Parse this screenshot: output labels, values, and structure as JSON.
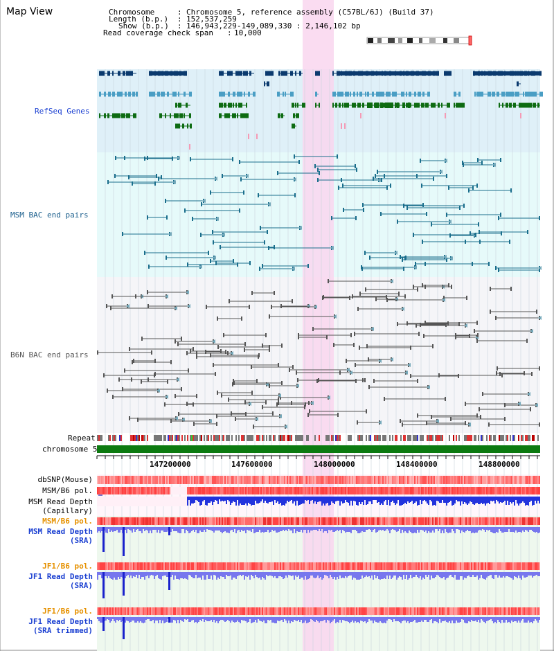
{
  "view": {
    "title": "Map View"
  },
  "header": {
    "chromosome_label": "Chromosome",
    "chromosome_value": "Chromosome 5, reference assembly (C57BL/6J) (Build 37)",
    "length_label": "Length (b.p.)",
    "length_value": "152,537,259",
    "show_label": "Show (b.p.)",
    "show_value": "146,943,229-149,089,330 : 2,146,102 bp",
    "coverage_label": "Read coverage check span",
    "coverage_value": "10,000",
    "sep": ":"
  },
  "tracks": {
    "refseq": "RefSeq Genes",
    "msm_bac": "MSM BAC end pairs",
    "b6n_bac": "B6N BAC end pairs",
    "repeat": "Repeat",
    "chromosome": "chromosome 5"
  },
  "axis": {
    "ticks": [
      "147200000",
      "147600000",
      "148000000",
      "148400000",
      "148800000"
    ]
  },
  "lower_tracks": {
    "dbsnp": "dbSNP(Mouse)",
    "msm_b6_pol": "MSM/B6 pol.",
    "msm_read_depth_cap_1": "MSM Read Depth",
    "msm_read_depth_cap_2": "(Capillary)",
    "msm_b6_pol_2": "MSM/B6 pol.",
    "msm_read_depth_sra_1": "MSM Read Depth",
    "msm_read_depth_sra_2": "(SRA)",
    "jf1_b6_pol": "JF1/B6 pol.",
    "jf1_read_depth_sra_1": "JF1 Read Depth",
    "jf1_read_depth_sra_2": "(SRA)",
    "jf1_b6_pol_2": "JF1/B6 pol.",
    "jf1_read_depth_trim_1": "JF1 Read Depth",
    "jf1_read_depth_trim_2": "(SRA trimmed)"
  },
  "colors": {
    "refseq_bg": "#dff0f8",
    "msm_bg": "#e6fafa",
    "b6n_bg": "#f5f5f8",
    "highlight": "#f9d6ef",
    "gene_dark": "#0b3a6e",
    "gene_mid": "#4a9ec4",
    "gene_green": "#0d6b12",
    "msm_pair": "#1a6e8c",
    "b6n_pair": "#555555",
    "label_blue": "#1a3fd1",
    "label_orange": "#e69100",
    "chrom_green": "#0c7a10",
    "depth_blue": "#2233dd",
    "depth_light": "#7777ee"
  }
}
